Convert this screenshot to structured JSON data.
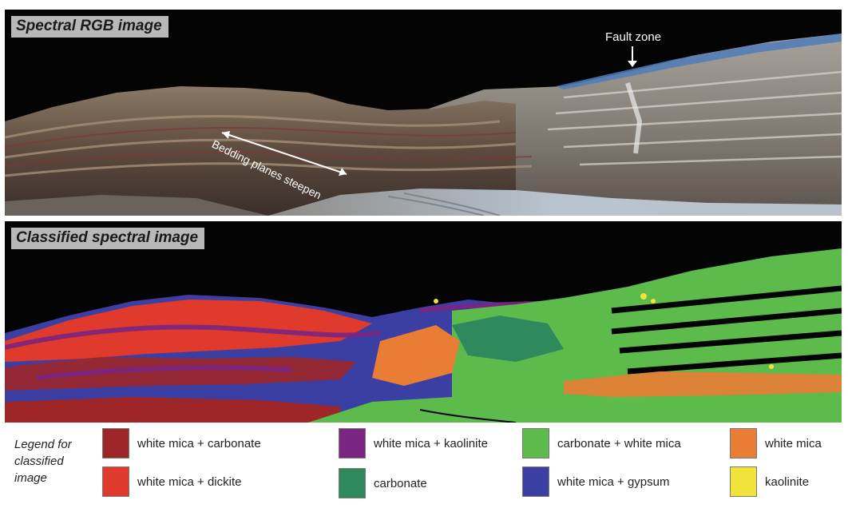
{
  "panels": {
    "rgb": {
      "title": "Spectral RGB image",
      "annotations": {
        "fault_zone": "Fault zone",
        "bedding": "Bedding planes steepen"
      }
    },
    "classified": {
      "title": "Classified spectral image"
    }
  },
  "legend": {
    "title_lines": [
      "Legend for",
      "classified",
      "image"
    ],
    "items": [
      {
        "label": "white mica + carbonate",
        "color": "#9e2629"
      },
      {
        "label": "white mica + dickite",
        "color": "#e03a2c"
      },
      {
        "label": "white mica + kaolinite",
        "color": "#7b2582"
      },
      {
        "label": "carbonate",
        "color": "#2e8a5c"
      },
      {
        "label": "carbonate + white mica",
        "color": "#5cbb4a"
      },
      {
        "label": "white mica + gypsum",
        "color": "#3b3fa3"
      },
      {
        "label": "white mica",
        "color": "#ea7d35"
      },
      {
        "label": "kaolinite",
        "color": "#f2e33a"
      }
    ]
  }
}
